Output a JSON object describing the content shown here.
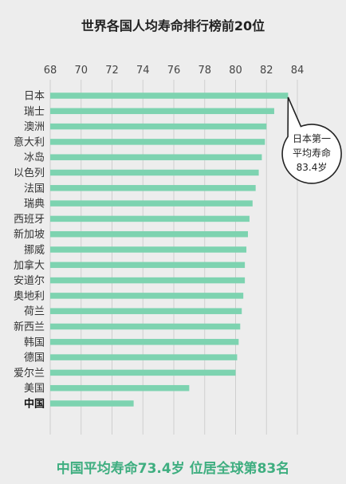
{
  "chart_data": {
    "type": "bar",
    "orientation": "horizontal",
    "title": "世界各国人均寿命排行榜前20位",
    "categories": [
      "日本",
      "瑞士",
      "澳洲",
      "意大利",
      "冰岛",
      "以色列",
      "法国",
      "瑞典",
      "西班牙",
      "新加坡",
      "挪威",
      "加拿大",
      "安道尔",
      "奥地利",
      "荷兰",
      "新西兰",
      "韩国",
      "德国",
      "爱尔兰",
      "美国",
      "中国"
    ],
    "values": [
      83.4,
      82.5,
      82.0,
      81.9,
      81.7,
      81.5,
      81.3,
      81.1,
      80.9,
      80.8,
      80.7,
      80.6,
      80.6,
      80.5,
      80.4,
      80.3,
      80.2,
      80.1,
      80.0,
      77.0,
      73.4
    ],
    "highlight_category": "中国",
    "xlim": [
      68,
      84
    ],
    "xticks": [
      68,
      70,
      72,
      74,
      76,
      78,
      80,
      82,
      84
    ],
    "tick_labels": [
      "68",
      "70",
      "72",
      "74",
      "76",
      "78",
      "80",
      "82",
      "84"
    ],
    "grid": true,
    "annotation": {
      "target": "日本",
      "lines": [
        "日本第一",
        "平均寿命",
        "83.4岁"
      ]
    },
    "footer": "中国平均寿命73.4岁 位居全球第83名",
    "colors": {
      "bar": "#7dd3b0",
      "grid": "#cfcfcf",
      "footer": "#3fae80",
      "background": "#ededed"
    }
  }
}
